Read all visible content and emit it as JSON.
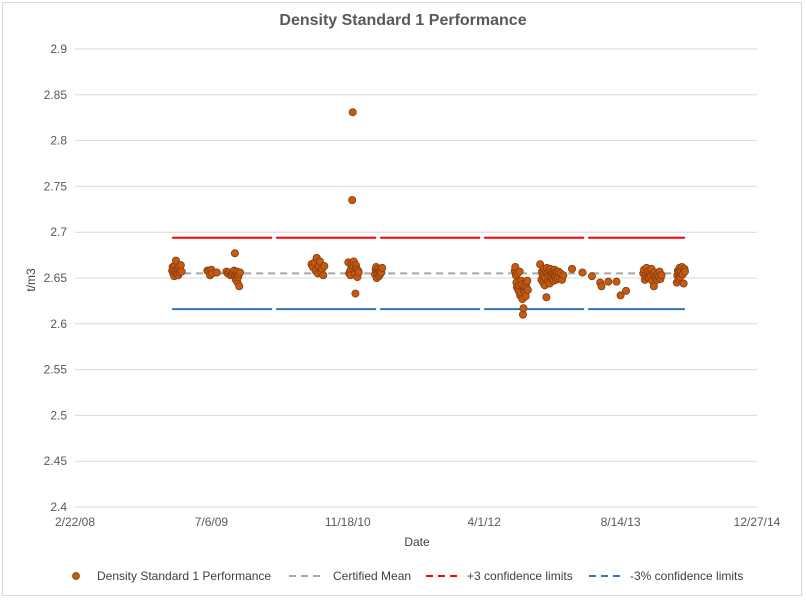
{
  "chart_data": {
    "type": "scatter",
    "title": "Density Standard 1 Performance",
    "xlabel": "Date",
    "ylabel": "t/m3",
    "ylim": [
      2.4,
      2.9
    ],
    "yticks": [
      "2.4",
      "2.45",
      "2.5",
      "2.55",
      "2.6",
      "2.65",
      "2.7",
      "2.75",
      "2.8",
      "2.85",
      "2.9"
    ],
    "xlim_days": [
      0,
      2500
    ],
    "xticks": [
      {
        "label": "2/22/08",
        "day": 0
      },
      {
        "label": "7/6/09",
        "day": 500
      },
      {
        "label": "11/18/10",
        "day": 1000
      },
      {
        "label": "4/1/12",
        "day": 1500
      },
      {
        "label": "8/14/13",
        "day": 2000
      },
      {
        "label": "12/27/14",
        "day": 2500
      }
    ],
    "grid": true,
    "legend_position": "bottom",
    "series": [
      {
        "name": "Density Standard 1 Performance",
        "kind": "points",
        "color": "#c55a11",
        "points": [
          [
            356,
            2.658
          ],
          [
            358,
            2.662
          ],
          [
            360,
            2.655
          ],
          [
            362,
            2.66
          ],
          [
            364,
            2.652
          ],
          [
            366,
            2.664
          ],
          [
            368,
            2.657
          ],
          [
            370,
            2.669
          ],
          [
            372,
            2.655
          ],
          [
            375,
            2.66
          ],
          [
            378,
            2.653
          ],
          [
            380,
            2.662
          ],
          [
            383,
            2.656
          ],
          [
            386,
            2.659
          ],
          [
            388,
            2.664
          ],
          [
            391,
            2.657
          ],
          [
            485,
            2.658
          ],
          [
            490,
            2.657
          ],
          [
            495,
            2.653
          ],
          [
            500,
            2.659
          ],
          [
            503,
            2.655
          ],
          [
            520,
            2.656
          ],
          [
            555,
            2.657
          ],
          [
            560,
            2.655
          ],
          [
            565,
            2.656
          ],
          [
            570,
            2.653
          ],
          [
            575,
            2.654
          ],
          [
            580,
            2.656
          ],
          [
            583,
            2.658
          ],
          [
            586,
            2.677
          ],
          [
            588,
            2.652
          ],
          [
            590,
            2.648
          ],
          [
            592,
            2.655
          ],
          [
            594,
            2.657
          ],
          [
            596,
            2.645
          ],
          [
            598,
            2.651
          ],
          [
            600,
            2.654
          ],
          [
            602,
            2.641
          ],
          [
            605,
            2.656
          ],
          [
            867,
            2.665
          ],
          [
            872,
            2.662
          ],
          [
            878,
            2.667
          ],
          [
            882,
            2.658
          ],
          [
            886,
            2.672
          ],
          [
            890,
            2.655
          ],
          [
            894,
            2.663
          ],
          [
            898,
            2.668
          ],
          [
            902,
            2.657
          ],
          [
            906,
            2.66
          ],
          [
            910,
            2.653
          ],
          [
            914,
            2.663
          ],
          [
            1002,
            2.667
          ],
          [
            1005,
            2.655
          ],
          [
            1008,
            2.657
          ],
          [
            1010,
            2.653
          ],
          [
            1012,
            2.66
          ],
          [
            1014,
            2.665
          ],
          [
            1016,
            2.735
          ],
          [
            1018,
            2.831
          ],
          [
            1020,
            2.662
          ],
          [
            1022,
            2.668
          ],
          [
            1024,
            2.658
          ],
          [
            1026,
            2.655
          ],
          [
            1028,
            2.633
          ],
          [
            1030,
            2.664
          ],
          [
            1032,
            2.66
          ],
          [
            1035,
            2.651
          ],
          [
            1038,
            2.658
          ],
          [
            1040,
            2.656
          ],
          [
            1100,
            2.654
          ],
          [
            1102,
            2.659
          ],
          [
            1104,
            2.662
          ],
          [
            1106,
            2.65
          ],
          [
            1108,
            2.657
          ],
          [
            1110,
            2.655
          ],
          [
            1112,
            2.66
          ],
          [
            1114,
            2.652
          ],
          [
            1116,
            2.657
          ],
          [
            1118,
            2.654
          ],
          [
            1120,
            2.659
          ],
          [
            1123,
            2.656
          ],
          [
            1126,
            2.661
          ],
          [
            1612,
            2.658
          ],
          [
            1614,
            2.662
          ],
          [
            1616,
            2.653
          ],
          [
            1618,
            2.645
          ],
          [
            1620,
            2.64
          ],
          [
            1622,
            2.655
          ],
          [
            1624,
            2.638
          ],
          [
            1626,
            2.636
          ],
          [
            1628,
            2.642
          ],
          [
            1630,
            2.657
          ],
          [
            1632,
            2.631
          ],
          [
            1634,
            2.634
          ],
          [
            1636,
            2.647
          ],
          [
            1638,
            2.643
          ],
          [
            1640,
            2.627
          ],
          [
            1642,
            2.61
          ],
          [
            1644,
            2.617
          ],
          [
            1646,
            2.636
          ],
          [
            1648,
            2.641
          ],
          [
            1650,
            2.634
          ],
          [
            1652,
            2.63
          ],
          [
            1654,
            2.645
          ],
          [
            1656,
            2.639
          ],
          [
            1658,
            2.647
          ],
          [
            1660,
            2.637
          ],
          [
            1705,
            2.665
          ],
          [
            1710,
            2.648
          ],
          [
            1712,
            2.657
          ],
          [
            1714,
            2.653
          ],
          [
            1716,
            2.645
          ],
          [
            1718,
            2.655
          ],
          [
            1720,
            2.66
          ],
          [
            1722,
            2.642
          ],
          [
            1724,
            2.65
          ],
          [
            1726,
            2.657
          ],
          [
            1728,
            2.629
          ],
          [
            1730,
            2.661
          ],
          [
            1732,
            2.655
          ],
          [
            1734,
            2.647
          ],
          [
            1736,
            2.652
          ],
          [
            1738,
            2.658
          ],
          [
            1740,
            2.644
          ],
          [
            1742,
            2.66
          ],
          [
            1744,
            2.654
          ],
          [
            1746,
            2.651
          ],
          [
            1748,
            2.657
          ],
          [
            1750,
            2.649
          ],
          [
            1752,
            2.655
          ],
          [
            1754,
            2.647
          ],
          [
            1756,
            2.653
          ],
          [
            1758,
            2.659
          ],
          [
            1760,
            2.652
          ],
          [
            1762,
            2.656
          ],
          [
            1764,
            2.648
          ],
          [
            1766,
            2.654
          ],
          [
            1768,
            2.65
          ],
          [
            1772,
            2.657
          ],
          [
            1776,
            2.651
          ],
          [
            1780,
            2.655
          ],
          [
            1785,
            2.648
          ],
          [
            1790,
            2.653
          ],
          [
            1822,
            2.66
          ],
          [
            1860,
            2.656
          ],
          [
            1895,
            2.652
          ],
          [
            1925,
            2.645
          ],
          [
            1930,
            2.641
          ],
          [
            1955,
            2.646
          ],
          [
            1985,
            2.646
          ],
          [
            2000,
            2.631
          ],
          [
            2020,
            2.636
          ],
          [
            2083,
            2.655
          ],
          [
            2086,
            2.659
          ],
          [
            2089,
            2.648
          ],
          [
            2092,
            2.653
          ],
          [
            2095,
            2.661
          ],
          [
            2098,
            2.651
          ],
          [
            2101,
            2.657
          ],
          [
            2104,
            2.65
          ],
          [
            2107,
            2.655
          ],
          [
            2110,
            2.652
          ],
          [
            2113,
            2.66
          ],
          [
            2116,
            2.647
          ],
          [
            2119,
            2.654
          ],
          [
            2122,
            2.641
          ],
          [
            2125,
            2.656
          ],
          [
            2128,
            2.65
          ],
          [
            2131,
            2.653
          ],
          [
            2134,
            2.648
          ],
          [
            2137,
            2.655
          ],
          [
            2140,
            2.651
          ],
          [
            2143,
            2.657
          ],
          [
            2146,
            2.649
          ],
          [
            2150,
            2.653
          ],
          [
            2206,
            2.645
          ],
          [
            2208,
            2.653
          ],
          [
            2210,
            2.658
          ],
          [
            2212,
            2.649
          ],
          [
            2214,
            2.656
          ],
          [
            2216,
            2.661
          ],
          [
            2218,
            2.651
          ],
          [
            2220,
            2.655
          ],
          [
            2222,
            2.658
          ],
          [
            2225,
            2.662
          ],
          [
            2228,
            2.654
          ],
          [
            2231,
            2.644
          ],
          [
            2234,
            2.66
          ],
          [
            2236,
            2.657
          ]
        ]
      },
      {
        "name": "Certified Mean",
        "kind": "line",
        "color": "#a6a6a6",
        "y": 2.655,
        "x_range": [
          356,
          2236
        ]
      },
      {
        "name": "+3 confidence limits",
        "kind": "line",
        "color": "#ff0000",
        "y": 2.694,
        "x_range": [
          356,
          2236
        ]
      },
      {
        "name": "-3% confidence limits",
        "kind": "line",
        "color": "#2e75b6",
        "y": 2.616,
        "x_range": [
          356,
          2236
        ]
      }
    ]
  }
}
